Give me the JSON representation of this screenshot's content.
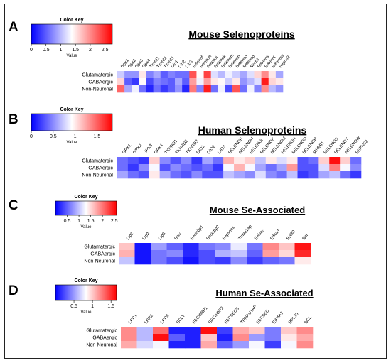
{
  "colors": {
    "low": "#0000ff",
    "mid": "#ffffff",
    "high": "#ff0000",
    "border": "#222222",
    "text": "#000000"
  },
  "chart_data": [
    {
      "type": "heatmap",
      "panel_letter": "A",
      "title": "Mouse Selenoproteins",
      "color_key": {
        "title": "Color Key",
        "axis_label": "Value",
        "ticks": [
          0,
          0.5,
          1,
          1.5,
          2,
          2.5
        ],
        "range": [
          0,
          2.75
        ]
      },
      "rows": [
        "Glutamatergic",
        "GABAergic",
        "Non-Neuronal"
      ],
      "columns": [
        "Gpx1",
        "Gpx2",
        "Gpx3",
        "Gpx4",
        "Txnrd1",
        "Txnrd2",
        "Txnrd3",
        "Dio1",
        "Dio2",
        "Dio3",
        "Selenof",
        "Selenoh",
        "Selenoi",
        "Selenok",
        "Selenom",
        "Selenon",
        "Selenoo",
        "Selenop",
        "Msrb1",
        "Selenos",
        "Selenot",
        "Selenow",
        "Sephs2"
      ],
      "values": [
        [
          1.1,
          0.8,
          0.8,
          1.5,
          0.7,
          0.9,
          0.5,
          0.7,
          0.6,
          0.6,
          2.3,
          1.4,
          2.4,
          1.2,
          1.0,
          1.3,
          1.1,
          0.9,
          1.2,
          1.6,
          2.0,
          1.5,
          0.9
        ],
        [
          1.6,
          0.5,
          0.3,
          1.4,
          0.4,
          0.7,
          0.6,
          0.5,
          0.9,
          0.5,
          1.9,
          1.3,
          1.9,
          1.5,
          1.4,
          1.1,
          1.5,
          0.8,
          1.0,
          1.2,
          2.6,
          1.6,
          1.5
        ],
        [
          2.2,
          0.9,
          1.3,
          0.6,
          0.2,
          0.6,
          0.3,
          0.5,
          0.8,
          0.2,
          2.1,
          0.7,
          2.6,
          0.6,
          1.3,
          0.4,
          2.3,
          0.6,
          1.3,
          0.7,
          2.0,
          1.0,
          0.8
        ]
      ]
    },
    {
      "type": "heatmap",
      "panel_letter": "B",
      "title": "Human Selenoproteins",
      "color_key": {
        "title": "Color Key",
        "axis_label": "Value",
        "ticks": [
          0,
          0.5,
          1,
          1.5
        ],
        "range": [
          0,
          1.85
        ]
      },
      "rows": [
        "Glutamatergic",
        "GABAergic",
        "Non-Neuronal"
      ],
      "columns": [
        "GPX1",
        "GPX2",
        "GPX3",
        "GPX4",
        "TXNRD1",
        "TXNRD2",
        "TXNRD3",
        "DIO1",
        "DIO2",
        "DIO3",
        "SELENOF",
        "SELENOH",
        "SELENOI",
        "SELENOK",
        "SELENOM",
        "SELENON",
        "SELENOO",
        "SELENOP",
        "MSRB1",
        "SELENOS",
        "SELENOT",
        "SELENOW",
        "SEPHS2"
      ],
      "values": [
        [
          0.4,
          0.3,
          0.2,
          1.1,
          0.5,
          0.3,
          0.5,
          0.2,
          0.6,
          0.4,
          1.2,
          1.0,
          1.1,
          0.7,
          1.0,
          0.8,
          1.0,
          0.3,
          0.4,
          1.1,
          1.8,
          1.1,
          0.4
        ],
        [
          0.4,
          0.2,
          0.5,
          0.9,
          0.3,
          0.5,
          0.4,
          0.3,
          0.4,
          0.2,
          0.9,
          1.2,
          0.9,
          0.6,
          0.4,
          0.6,
          1.3,
          0.3,
          0.3,
          0.8,
          1.4,
          0.9,
          0.5
        ],
        [
          0.6,
          0.4,
          0.3,
          1.0,
          0.6,
          0.4,
          0.3,
          0.5,
          0.3,
          0.3,
          0.7,
          0.6,
          0.5,
          0.8,
          0.5,
          0.4,
          0.7,
          0.2,
          0.3,
          0.6,
          0.7,
          0.4,
          0.2
        ]
      ]
    },
    {
      "type": "heatmap",
      "panel_letter": "C",
      "title": "Mouse Se-Associated",
      "color_key": {
        "title": "Color Key",
        "axis_label": "Value",
        "ticks": [
          0.5,
          1,
          1.5,
          2,
          2.5
        ],
        "range": [
          0,
          2.6
        ]
      },
      "rows": [
        "Glutamatergic",
        "GABAergic",
        "Non-Neuronal"
      ],
      "columns": [
        "Lrp1",
        "Lrp2",
        "Lrp8",
        "Scly",
        "Secisbp1",
        "Secisbp2",
        "Sepsecs",
        "Trnau1ap",
        "Eefsec",
        "Eif4a3",
        "Rpl30",
        "Ncl"
      ],
      "values": [
        [
          1.6,
          0.1,
          0.8,
          0.5,
          0.2,
          0.6,
          0.7,
          1.2,
          0.6,
          1.9,
          1.6,
          2.5
        ],
        [
          1.7,
          0.1,
          0.6,
          0.7,
          0.2,
          0.4,
          0.9,
          1.0,
          0.5,
          1.8,
          1.5,
          2.4
        ],
        [
          1.0,
          0.1,
          0.6,
          0.4,
          0.1,
          0.4,
          0.3,
          0.7,
          0.3,
          0.5,
          0.6,
          1.4
        ]
      ]
    },
    {
      "type": "heatmap",
      "panel_letter": "D",
      "title": "Human Se-Associated",
      "color_key": {
        "title": "Color Key",
        "axis_label": "Value",
        "ticks": [
          0.5,
          1,
          1.5
        ],
        "range": [
          0,
          1.65
        ]
      },
      "rows": [
        "Glutamatergic",
        "GABAergic",
        "Non-Neuronal"
      ],
      "columns": [
        "LRP1",
        "LRP2",
        "LRP8",
        "SCLY",
        "SECISBP1",
        "SECISBP2",
        "SEPSECS",
        "TRNAU1AP",
        "EEFSEC",
        "EIF4A3",
        "RPL30",
        "NCL"
      ],
      "values": [
        [
          1.2,
          0.6,
          1.3,
          0.1,
          0.1,
          1.6,
          0.2,
          1.1,
          1.0,
          0.4,
          1.0,
          1.2
        ],
        [
          1.2,
          0.6,
          1.6,
          0.3,
          0.1,
          1.0,
          0.1,
          1.2,
          0.5,
          0.4,
          0.9,
          1.1
        ],
        [
          1.1,
          0.7,
          0.8,
          0.1,
          0.1,
          1.1,
          0.3,
          0.5,
          0.8,
          0.2,
          0.8,
          1.2
        ]
      ]
    }
  ]
}
